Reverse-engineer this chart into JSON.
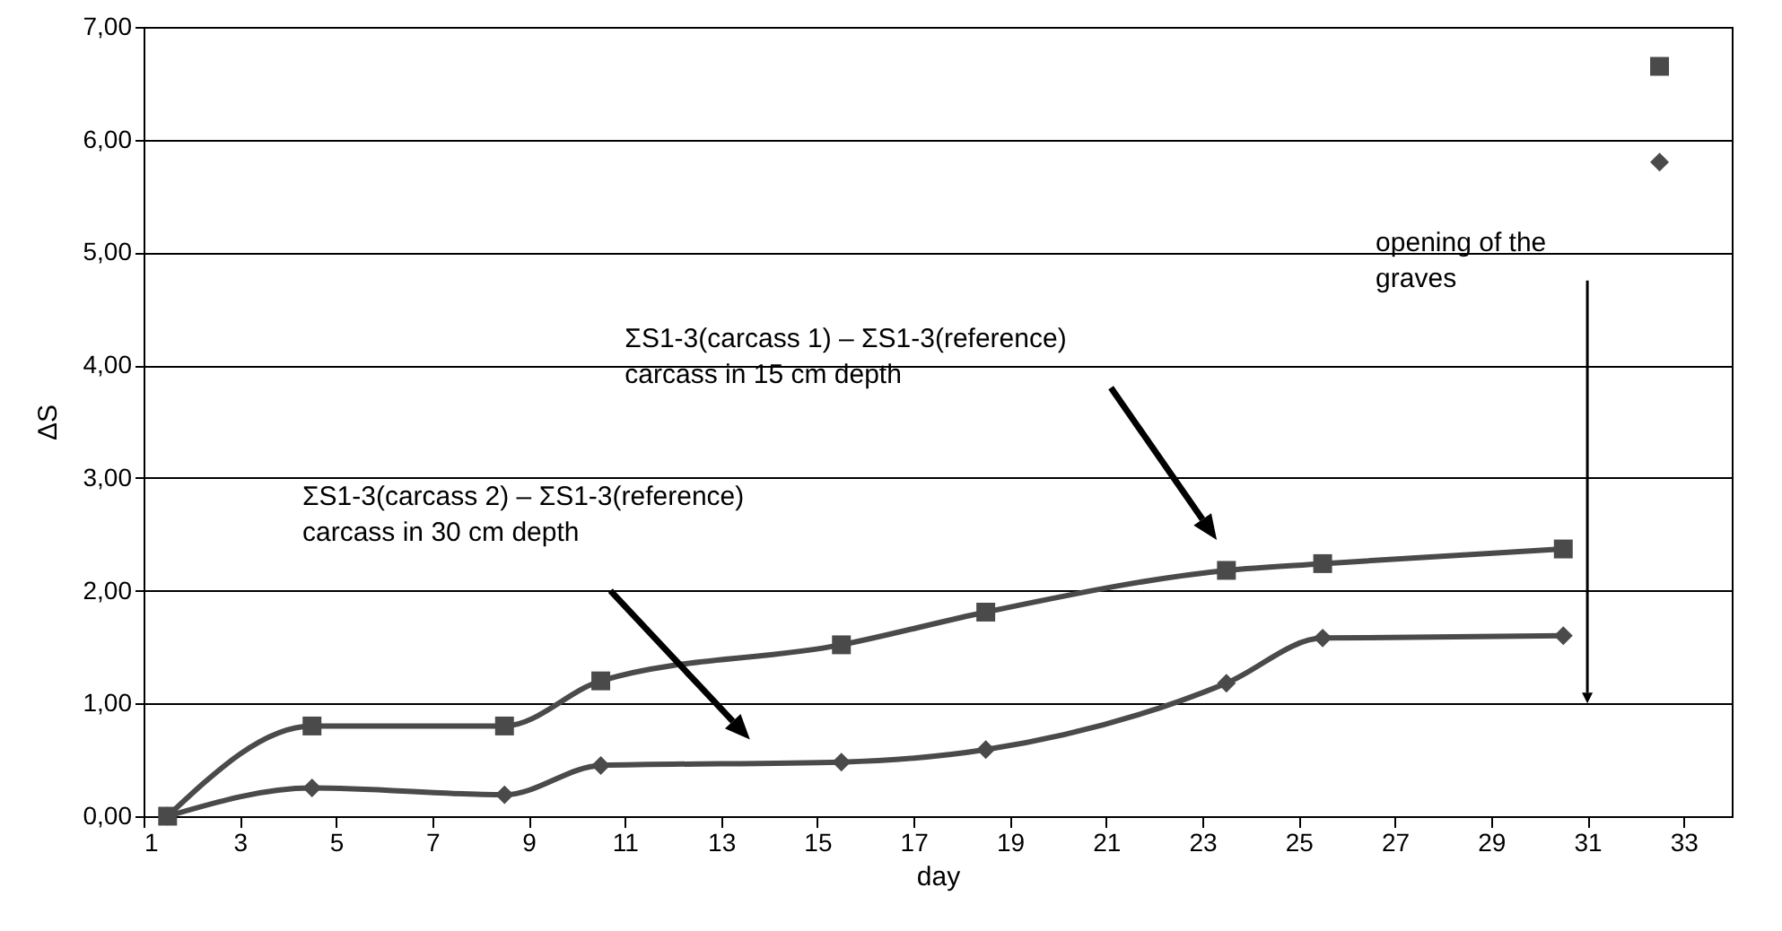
{
  "chart_data": {
    "type": "line",
    "xlabel": "day",
    "ylabel": "ΔS",
    "x": [
      1.5,
      4.5,
      8.5,
      10.5,
      15.5,
      18.5,
      23.5,
      25.5,
      30.5
    ],
    "series": [
      {
        "color": "#4a4a4a",
        "marker": "square",
        "values": [
          0,
          0.8,
          0.8,
          1.2,
          1.52,
          1.81,
          2.18,
          2.24,
          2.37
        ]
      },
      {
        "color": "#4a4a4a",
        "marker": "diamond",
        "values": [
          0,
          0.25,
          0.19,
          0.45,
          0.48,
          0.59,
          1.18,
          1.58,
          1.6
        ]
      },
      {
        "type": "scatter",
        "color": "#4a4a4a",
        "marker": "square",
        "x": [
          32.5
        ],
        "values": [
          6.65
        ]
      },
      {
        "type": "scatter",
        "color": "#4a4a4a",
        "marker": "diamond",
        "x": [
          32.5
        ],
        "values": [
          5.8
        ]
      }
    ],
    "xlim": [
      1,
      34
    ],
    "xticks": [
      1,
      3,
      5,
      7,
      9,
      11,
      13,
      15,
      17,
      19,
      21,
      23,
      25,
      27,
      29,
      31,
      33
    ],
    "ylim": [
      0,
      7
    ],
    "yticks": [
      {
        "value": 0,
        "label": "0,00"
      },
      {
        "value": 1,
        "label": "1,00"
      },
      {
        "value": 2,
        "label": "2,00"
      },
      {
        "value": 3,
        "label": "3,00"
      },
      {
        "value": 4,
        "label": "4,00"
      },
      {
        "value": 5,
        "label": "5,00"
      },
      {
        "value": 6,
        "label": "6,00"
      },
      {
        "value": 7,
        "label": "7,00"
      }
    ],
    "grid": "y",
    "line_style": "solid",
    "annotations": [
      "ΣS1-3(carcass 1) – ΣS1-3(reference)\ncarcass in 15 cm depth",
      "ΣS1-3(carcass 2) – ΣS1-3(reference)\ncarcass in 30 cm depth",
      "opening of the\ngraves"
    ]
  }
}
